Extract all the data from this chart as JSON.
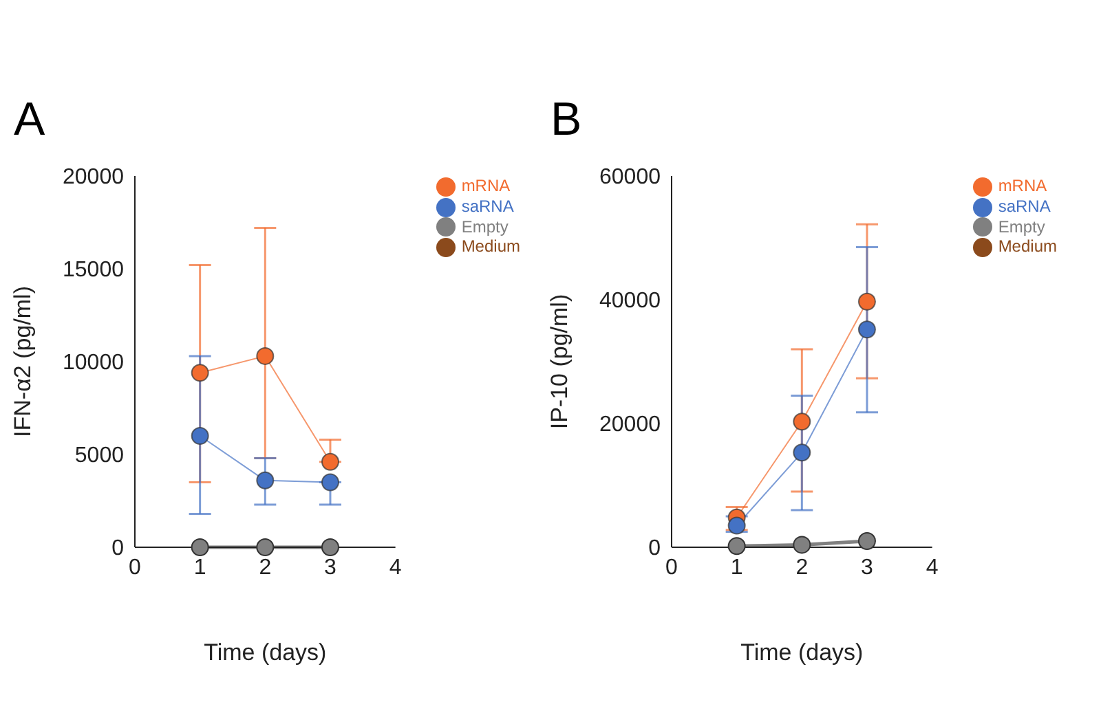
{
  "chart_data": [
    {
      "type": "line",
      "title": "A",
      "xlabel": "Time (days)",
      "ylabel": "IFN-α2 (pg/ml)",
      "x": [
        1,
        2,
        3
      ],
      "xlim": [
        0,
        4
      ],
      "xticks": [
        0,
        1,
        2,
        3,
        4
      ],
      "ylim": [
        0,
        20000
      ],
      "yticks": [
        0,
        5000,
        10000,
        15000,
        20000
      ],
      "legend": "top right",
      "marker": "circle",
      "line_style": "solid",
      "series": [
        {
          "name": "mRNA",
          "color": "#f26b2e",
          "values": [
            9400,
            10300,
            4600
          ],
          "errors": [
            [
              3500,
              15200
            ],
            [
              4800,
              17200
            ],
            [
              4600,
              5800
            ]
          ]
        },
        {
          "name": "saRNA",
          "color": "#4472c4",
          "values": [
            6000,
            3600,
            3500
          ],
          "errors": [
            [
              1800,
              10300
            ],
            [
              2300,
              4800
            ],
            [
              2300,
              3500
            ]
          ]
        },
        {
          "name": "Empty",
          "color": "#808080",
          "values": [
            0,
            0,
            0
          ]
        },
        {
          "name": "Medium",
          "color": "#8b4a1c",
          "values": [
            null,
            null,
            null
          ]
        }
      ]
    },
    {
      "type": "line",
      "title": "B",
      "xlabel": "Time (days)",
      "ylabel": "IP-10 (pg/ml)",
      "x": [
        1,
        2,
        3
      ],
      "xlim": [
        0,
        4
      ],
      "xticks": [
        0,
        1,
        2,
        3,
        4
      ],
      "ylim": [
        0,
        60000
      ],
      "yticks": [
        0,
        20000,
        40000,
        60000
      ],
      "legend": "top right",
      "marker": "circle",
      "line_style": "solid",
      "series": [
        {
          "name": "mRNA",
          "color": "#f26b2e",
          "values": [
            4800,
            20300,
            39700
          ],
          "errors": [
            [
              2800,
              6500
            ],
            [
              9000,
              32000
            ],
            [
              27300,
              52200
            ]
          ]
        },
        {
          "name": "saRNA",
          "color": "#4472c4",
          "values": [
            3500,
            15300,
            35200
          ],
          "errors": [
            [
              2500,
              5000
            ],
            [
              6000,
              24500
            ],
            [
              21800,
              48500
            ]
          ]
        },
        {
          "name": "Empty",
          "color": "#808080",
          "values": [
            200,
            400,
            1000
          ]
        },
        {
          "name": "Medium",
          "color": "#8b4a1c",
          "values": [
            null,
            null,
            null
          ]
        }
      ]
    }
  ]
}
